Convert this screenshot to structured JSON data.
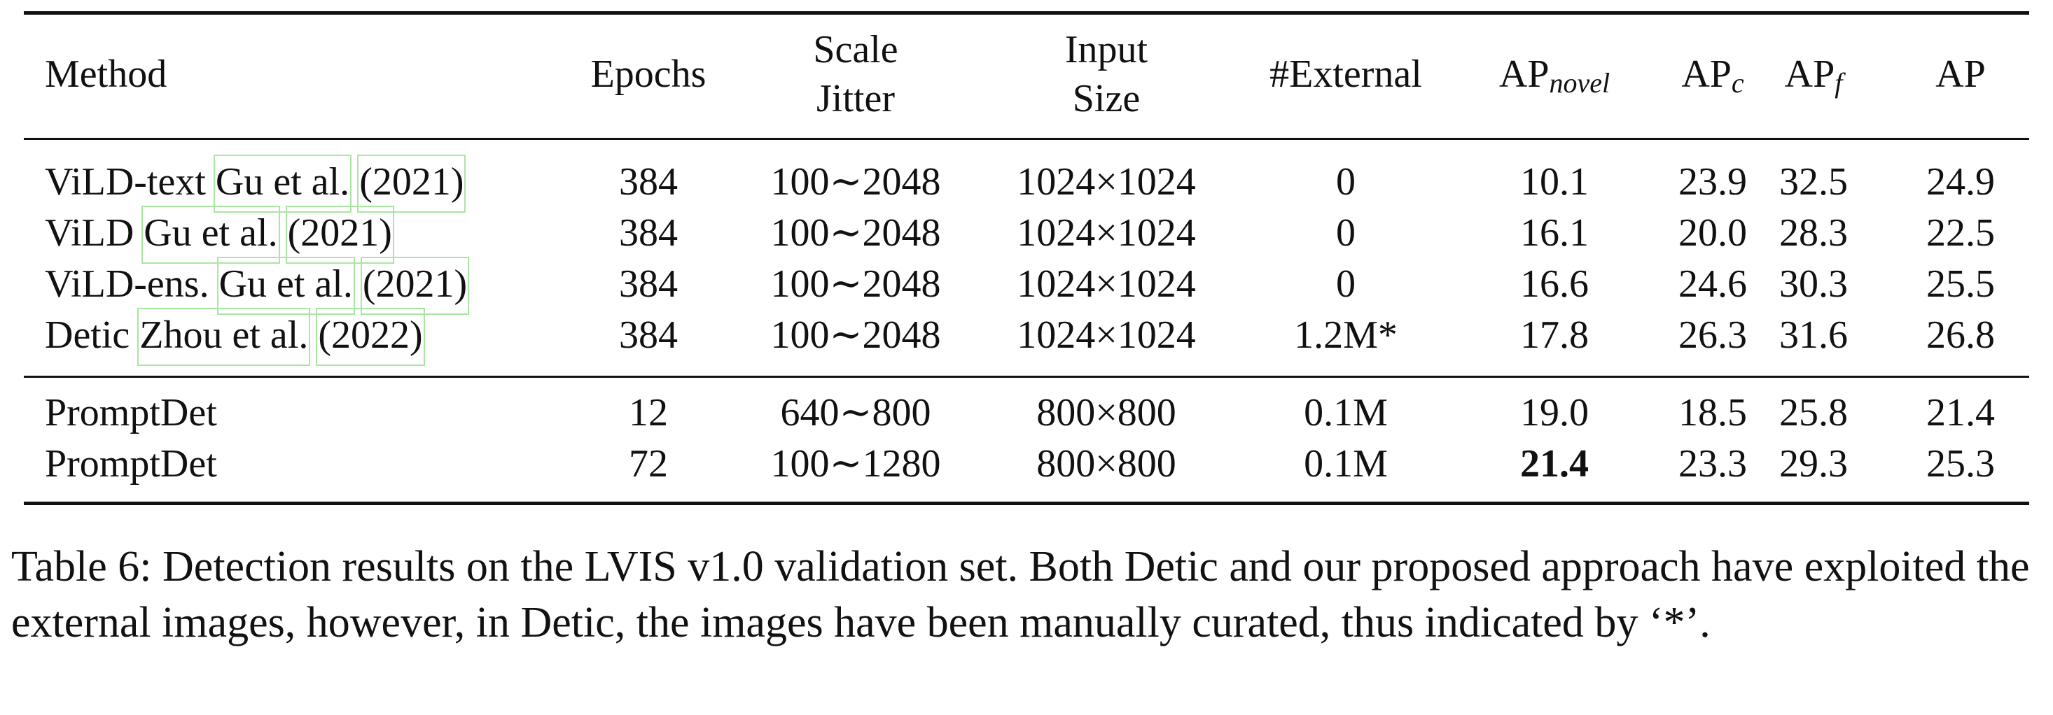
{
  "table": {
    "headers": {
      "method": "Method",
      "epochs": "Epochs",
      "scale_jitter": [
        "Scale",
        "Jitter"
      ],
      "input_size": [
        "Input",
        "Size"
      ],
      "external": "#External",
      "ap_novel": {
        "base": "AP",
        "sub": "novel"
      },
      "ap_c": {
        "base": "AP",
        "sub": "c"
      },
      "ap_f": {
        "base": "AP",
        "sub": "f"
      },
      "ap": "AP"
    },
    "rows": [
      {
        "method": "ViLD-text",
        "cite_author": "Gu et al.",
        "cite_year": "(2021)",
        "epochs": "384",
        "scale_jitter": "100∼2048",
        "input_size": "1024×1024",
        "external": "0",
        "ap_novel": "10.1",
        "ap_c": "23.9",
        "ap_f": "32.5",
        "ap": "24.9"
      },
      {
        "method": "ViLD",
        "cite_author": "Gu et al.",
        "cite_year": "(2021)",
        "epochs": "384",
        "scale_jitter": "100∼2048",
        "input_size": "1024×1024",
        "external": "0",
        "ap_novel": "16.1",
        "ap_c": "20.0",
        "ap_f": "28.3",
        "ap": "22.5"
      },
      {
        "method": "ViLD-ens.",
        "cite_author": "Gu et al.",
        "cite_year": "(2021)",
        "epochs": "384",
        "scale_jitter": "100∼2048",
        "input_size": "1024×1024",
        "external": "0",
        "ap_novel": "16.6",
        "ap_c": "24.6",
        "ap_f": "30.3",
        "ap": "25.5"
      },
      {
        "method": "Detic",
        "cite_author": "Zhou et al.",
        "cite_year": "(2022)",
        "epochs": "384",
        "scale_jitter": "100∼2048",
        "input_size": "1024×1024",
        "external": "1.2M*",
        "ap_novel": "17.8",
        "ap_c": "26.3",
        "ap_f": "31.6",
        "ap": "26.8"
      },
      {
        "method": "PromptDet",
        "cite_author": "",
        "cite_year": "",
        "epochs": "12",
        "scale_jitter": "640∼800",
        "input_size": "800×800",
        "external": "0.1M",
        "ap_novel": "19.0",
        "ap_c": "18.5",
        "ap_f": "25.8",
        "ap": "21.4"
      },
      {
        "method": "PromptDet",
        "cite_author": "",
        "cite_year": "",
        "epochs": "72",
        "scale_jitter": "100∼1280",
        "input_size": "800×800",
        "external": "0.1M",
        "ap_novel": "21.4",
        "ap_c": "23.3",
        "ap_f": "29.3",
        "ap": "25.3"
      }
    ]
  },
  "caption": "Table 6: Detection results on the LVIS v1.0 validation set. Both Detic and our proposed approach have exploited the external images, however, in Detic, the images have been manually curated, thus indicated by ‘*’."
}
